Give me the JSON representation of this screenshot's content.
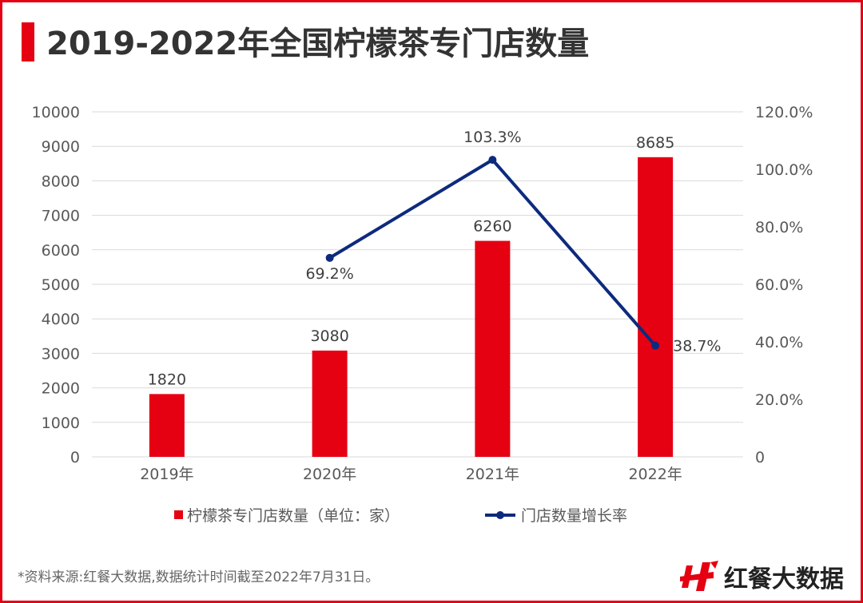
{
  "title": "2019-2022年全国柠檬茶专门店数量",
  "chart_data": {
    "type": "bar+line",
    "categories": [
      "2019年",
      "2020年",
      "2021年",
      "2022年"
    ],
    "series": [
      {
        "name": "柠檬茶专门店数量（单位：家）",
        "type": "bar",
        "axis": "left",
        "values": [
          1820,
          3080,
          6260,
          8685
        ],
        "labels": [
          "1820",
          "3080",
          "6260",
          "8685"
        ],
        "color": "#e50012"
      },
      {
        "name": "门店数量增长率",
        "type": "line",
        "axis": "right",
        "values": [
          null,
          69.2,
          103.3,
          38.7
        ],
        "labels": [
          "",
          "69.2%",
          "103.3%",
          "38.7%"
        ],
        "color": "#0d2a7d"
      }
    ],
    "left_axis": {
      "ylim": [
        0,
        10000
      ],
      "ticks": [
        "0",
        "1000",
        "2000",
        "3000",
        "4000",
        "5000",
        "6000",
        "7000",
        "8000",
        "9000",
        "10000"
      ]
    },
    "right_axis": {
      "ylim": [
        0,
        120
      ],
      "ticks": [
        "0",
        "20.0%",
        "40.0%",
        "60.0%",
        "80.0%",
        "100.0%",
        "120.0%"
      ]
    },
    "grid": true,
    "legend": "bottom"
  },
  "footnote": "*资料来源:红餐大数据,数据统计时间截至2022年7月31日。",
  "logo": {
    "text": "红餐大数据",
    "accent": "#e50012"
  }
}
